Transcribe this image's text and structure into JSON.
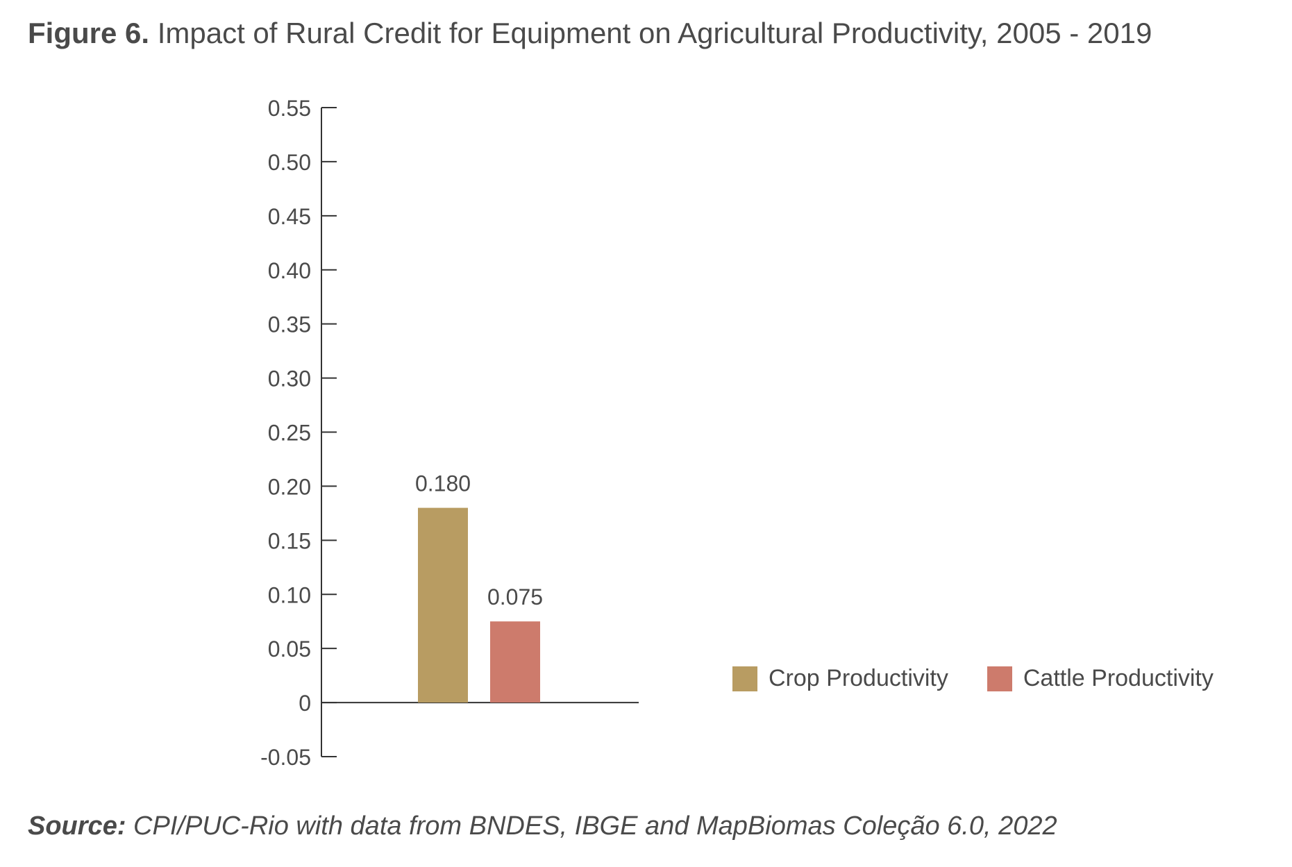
{
  "title": {
    "prefix": "Figure 6.",
    "text": "Impact of Rural Credit for Equipment on Agricultural Productivity, 2005 - 2019"
  },
  "source": {
    "prefix": "Source:",
    "text": "CPI/PUC-Rio with data from BNDES, IBGE and MapBiomas Coleção 6.0, 2022"
  },
  "colors": {
    "crop": "#b89c62",
    "cattle": "#cd7b6c",
    "axis": "#333333",
    "text": "#4a4a4a"
  },
  "chart_data": {
    "type": "bar",
    "title": "",
    "xlabel": "",
    "ylabel": "",
    "ylim": [
      -0.05,
      0.55
    ],
    "grid": false,
    "legend_position": "right",
    "y_ticks": [
      "0.55",
      "0.50",
      "0.45",
      "0.40",
      "0.35",
      "0.30",
      "0.25",
      "0.20",
      "0.15",
      "0.10",
      "0.05",
      "0",
      "-0.05"
    ],
    "y_tick_values": [
      0.55,
      0.5,
      0.45,
      0.4,
      0.35,
      0.3,
      0.25,
      0.2,
      0.15,
      0.1,
      0.05,
      0,
      -0.05
    ],
    "series": [
      {
        "name": "Crop Productivity",
        "value": 0.18,
        "label": "0.180",
        "color": "#b89c62"
      },
      {
        "name": "Cattle Productivity",
        "value": 0.075,
        "label": "0.075",
        "color": "#cd7b6c"
      }
    ]
  }
}
